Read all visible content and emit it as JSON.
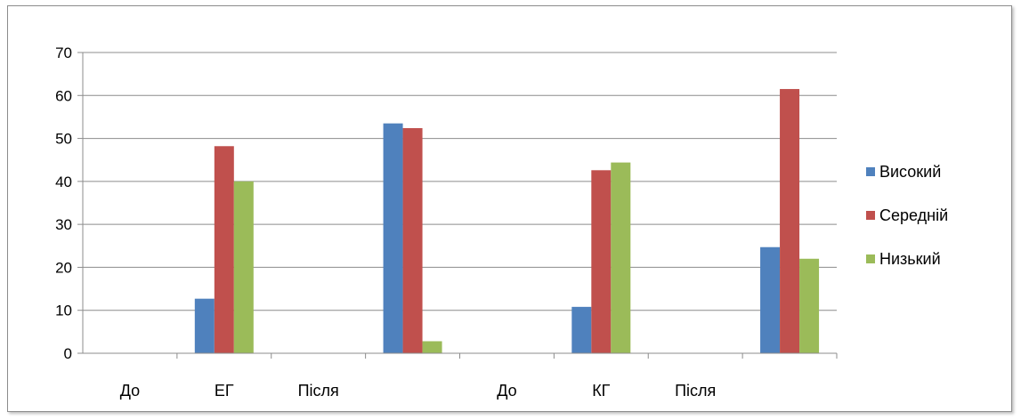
{
  "chart_data": {
    "type": "bar",
    "title": "",
    "xlabel": "",
    "ylabel": "",
    "ylim": [
      0,
      70
    ],
    "yticks": [
      0,
      10,
      20,
      30,
      40,
      50,
      60,
      70
    ],
    "grid": true,
    "legend_position": "right",
    "categories": [
      "До",
      "ЕГ",
      "Після",
      "",
      "До",
      "КГ",
      "Після",
      ""
    ],
    "series": [
      {
        "name": "Високий",
        "color": "#4f81bd",
        "values": [
          null,
          12.7,
          null,
          53.5,
          null,
          10.8,
          null,
          24.7
        ]
      },
      {
        "name": "Середній",
        "color": "#c0504d",
        "values": [
          null,
          48.2,
          null,
          52.4,
          null,
          42.6,
          null,
          61.5
        ]
      },
      {
        "name": "Низький",
        "color": "#9bbb59",
        "values": [
          null,
          40.0,
          null,
          2.8,
          null,
          44.4,
          null,
          22.0
        ]
      }
    ]
  }
}
